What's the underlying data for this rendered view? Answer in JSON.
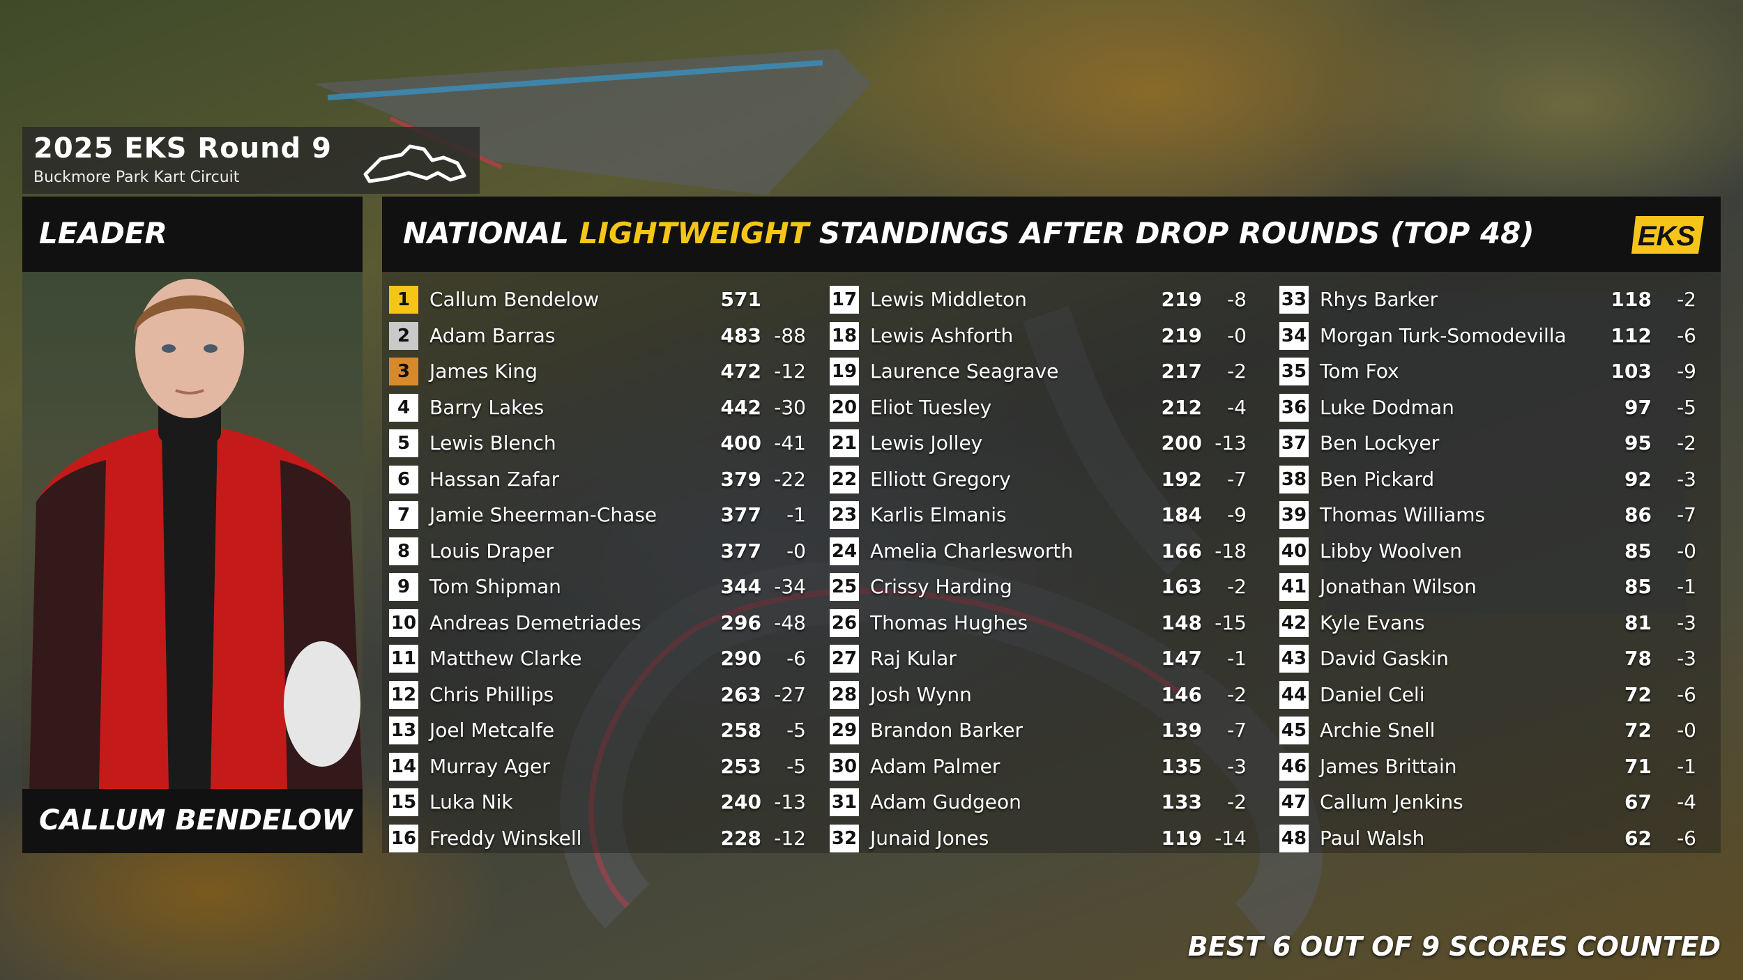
{
  "round": {
    "title": "2025 EKS Round 9",
    "venue": "Buckmore Park Kart Circuit"
  },
  "leader": {
    "label": "LEADER",
    "name": "CALLUM BENDELOW"
  },
  "standings": {
    "title_part1": "NATIONAL ",
    "title_accent": "LIGHTWEIGHT",
    "title_part2": " STANDINGS AFTER DROP ROUNDS (TOP 48)",
    "logo_text": "EKS",
    "accent_color": "#f5c518",
    "rows": [
      {
        "pos": "1",
        "name": "Callum Bendelow",
        "pts": "571",
        "drop": ""
      },
      {
        "pos": "2",
        "name": "Adam Barras",
        "pts": "483",
        "drop": "-88"
      },
      {
        "pos": "3",
        "name": "James King",
        "pts": "472",
        "drop": "-12"
      },
      {
        "pos": "4",
        "name": "Barry Lakes",
        "pts": "442",
        "drop": "-30"
      },
      {
        "pos": "5",
        "name": "Lewis Blench",
        "pts": "400",
        "drop": "-41"
      },
      {
        "pos": "6",
        "name": "Hassan Zafar",
        "pts": "379",
        "drop": "-22"
      },
      {
        "pos": "7",
        "name": "Jamie Sheerman-Chase",
        "pts": "377",
        "drop": "-1"
      },
      {
        "pos": "8",
        "name": "Louis Draper",
        "pts": "377",
        "drop": "-0"
      },
      {
        "pos": "9",
        "name": "Tom Shipman",
        "pts": "344",
        "drop": "-34"
      },
      {
        "pos": "10",
        "name": "Andreas Demetriades",
        "pts": "296",
        "drop": "-48"
      },
      {
        "pos": "11",
        "name": "Matthew Clarke",
        "pts": "290",
        "drop": "-6"
      },
      {
        "pos": "12",
        "name": "Chris Phillips",
        "pts": "263",
        "drop": "-27"
      },
      {
        "pos": "13",
        "name": "Joel Metcalfe",
        "pts": "258",
        "drop": "-5"
      },
      {
        "pos": "14",
        "name": "Murray Ager",
        "pts": "253",
        "drop": "-5"
      },
      {
        "pos": "15",
        "name": "Luka Nik",
        "pts": "240",
        "drop": "-13"
      },
      {
        "pos": "16",
        "name": "Freddy Winskell",
        "pts": "228",
        "drop": "-12"
      },
      {
        "pos": "17",
        "name": "Lewis Middleton",
        "pts": "219",
        "drop": "-8"
      },
      {
        "pos": "18",
        "name": "Lewis Ashforth",
        "pts": "219",
        "drop": "-0"
      },
      {
        "pos": "19",
        "name": "Laurence Seagrave",
        "pts": "217",
        "drop": "-2"
      },
      {
        "pos": "20",
        "name": "Eliot Tuesley",
        "pts": "212",
        "drop": "-4"
      },
      {
        "pos": "21",
        "name": "Lewis Jolley",
        "pts": "200",
        "drop": "-13"
      },
      {
        "pos": "22",
        "name": "Elliott Gregory",
        "pts": "192",
        "drop": "-7"
      },
      {
        "pos": "23",
        "name": "Karlis Elmanis",
        "pts": "184",
        "drop": "-9"
      },
      {
        "pos": "24",
        "name": "Amelia Charlesworth",
        "pts": "166",
        "drop": "-18"
      },
      {
        "pos": "25",
        "name": "Crissy Harding",
        "pts": "163",
        "drop": "-2"
      },
      {
        "pos": "26",
        "name": "Thomas Hughes",
        "pts": "148",
        "drop": "-15"
      },
      {
        "pos": "27",
        "name": "Raj Kular",
        "pts": "147",
        "drop": "-1"
      },
      {
        "pos": "28",
        "name": "Josh Wynn",
        "pts": "146",
        "drop": "-2"
      },
      {
        "pos": "29",
        "name": "Brandon Barker",
        "pts": "139",
        "drop": "-7"
      },
      {
        "pos": "30",
        "name": "Adam Palmer",
        "pts": "135",
        "drop": "-3"
      },
      {
        "pos": "31",
        "name": "Adam Gudgeon",
        "pts": "133",
        "drop": "-2"
      },
      {
        "pos": "32",
        "name": "Junaid Jones",
        "pts": "119",
        "drop": "-14"
      },
      {
        "pos": "33",
        "name": "Rhys Barker",
        "pts": "118",
        "drop": "-2"
      },
      {
        "pos": "34",
        "name": "Morgan Turk-Somodevilla",
        "pts": "112",
        "drop": "-6"
      },
      {
        "pos": "35",
        "name": "Tom Fox",
        "pts": "103",
        "drop": "-9"
      },
      {
        "pos": "36",
        "name": "Luke Dodman",
        "pts": "97",
        "drop": "-5"
      },
      {
        "pos": "37",
        "name": "Ben Lockyer",
        "pts": "95",
        "drop": "-2"
      },
      {
        "pos": "38",
        "name": "Ben Pickard",
        "pts": "92",
        "drop": "-3"
      },
      {
        "pos": "39",
        "name": "Thomas Williams",
        "pts": "86",
        "drop": "-7"
      },
      {
        "pos": "40",
        "name": "Libby Woolven",
        "pts": "85",
        "drop": "-0"
      },
      {
        "pos": "41",
        "name": "Jonathan Wilson",
        "pts": "85",
        "drop": "-1"
      },
      {
        "pos": "42",
        "name": "Kyle Evans",
        "pts": "81",
        "drop": "-3"
      },
      {
        "pos": "43",
        "name": "David Gaskin",
        "pts": "78",
        "drop": "-3"
      },
      {
        "pos": "44",
        "name": "Daniel Celi",
        "pts": "72",
        "drop": "-6"
      },
      {
        "pos": "45",
        "name": "Archie Snell",
        "pts": "72",
        "drop": "-0"
      },
      {
        "pos": "46",
        "name": "James Brittain",
        "pts": "71",
        "drop": "-1"
      },
      {
        "pos": "47",
        "name": "Callum Jenkins",
        "pts": "67",
        "drop": "-4"
      },
      {
        "pos": "48",
        "name": "Paul Walsh",
        "pts": "62",
        "drop": "-6"
      }
    ]
  },
  "footer": {
    "note": "BEST 6 OUT OF 9 SCORES COUNTED"
  },
  "icons": {
    "circuit": "circuit-outline-icon",
    "logo": "eks-logo-icon"
  }
}
